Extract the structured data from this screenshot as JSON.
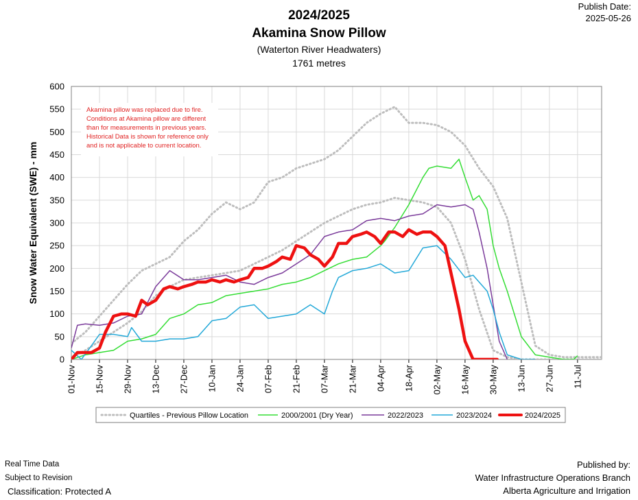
{
  "header": {
    "title": "2024/2025",
    "station": "Akamina Snow Pillow",
    "location": "(Waterton River Headwaters)",
    "elevation": "1761 metres",
    "publish_label": "Publish Date:",
    "publish_date": "2025-05-26"
  },
  "footer": {
    "left_line1": "Real Time Data",
    "left_line2": "Subject to Revision",
    "classification": "Classification: Protected A",
    "right_line1": "Published by:",
    "right_line2": "Water Infrastructure Operations Branch",
    "right_line3": "Alberta Agriculture and Irrigation"
  },
  "chart_data": {
    "type": "line",
    "ylabel": "Snow Water Equivalent (SWE)  -  mm",
    "ylim": [
      0,
      600
    ],
    "yticks": [
      0,
      50,
      100,
      150,
      200,
      250,
      300,
      350,
      400,
      450,
      500,
      550,
      600
    ],
    "xlim_days": [
      0,
      264
    ],
    "xticks": [
      "01-Nov",
      "15-Nov",
      "29-Nov",
      "13-Dec",
      "27-Dec",
      "10-Jan",
      "24-Jan",
      "07-Feb",
      "21-Feb",
      "07-Mar",
      "21-Mar",
      "04-Apr",
      "18-Apr",
      "02-May",
      "16-May",
      "30-May",
      "13-Jun",
      "27-Jun",
      "11-Jul"
    ],
    "grid": true,
    "legend_position": "bottom",
    "annotation": [
      "Akamina pillow was replaced due to fire.",
      "Conditions at Akamina pillow are different",
      "than for measurements in previous years.",
      "Historical Data is shown for reference only",
      "and is not applicable to current location."
    ],
    "series": [
      {
        "name": "Quartiles - Previous Pillow Location",
        "color": "#bdbdbd",
        "style": "dotted",
        "x": [
          0,
          7,
          14,
          21,
          28,
          35,
          42,
          49,
          56,
          63,
          70,
          77,
          84,
          91,
          98,
          105,
          112,
          119,
          126,
          133,
          140,
          147,
          154,
          161,
          168,
          175,
          182,
          189,
          196,
          203,
          210,
          217,
          224,
          231,
          238,
          245,
          252,
          259,
          264
        ],
        "y": [
          35,
          60,
          95,
          130,
          165,
          195,
          210,
          225,
          260,
          285,
          320,
          345,
          330,
          345,
          390,
          400,
          420,
          430,
          440,
          460,
          490,
          520,
          540,
          555,
          520,
          520,
          515,
          500,
          470,
          420,
          380,
          310,
          170,
          30,
          10,
          5,
          5,
          5,
          5
        ]
      },
      {
        "name": "",
        "color": "#bdbdbd",
        "style": "dotted",
        "x": [
          0,
          7,
          14,
          21,
          28,
          35,
          42,
          49,
          56,
          63,
          70,
          77,
          84,
          91,
          98,
          105,
          112,
          119,
          126,
          133,
          140,
          147,
          154,
          161,
          168,
          175,
          182,
          189,
          196,
          203,
          210,
          217,
          224,
          231,
          238,
          245,
          252,
          259,
          264
        ],
        "y": [
          5,
          20,
          40,
          60,
          80,
          105,
          140,
          160,
          175,
          180,
          185,
          190,
          195,
          210,
          225,
          240,
          260,
          280,
          300,
          315,
          330,
          340,
          345,
          355,
          350,
          345,
          335,
          300,
          220,
          110,
          20,
          5,
          0,
          0,
          0,
          0,
          0,
          0,
          0
        ]
      },
      {
        "name": "2000/2001  (Dry Year)",
        "color": "#33dd33",
        "style": "solid",
        "x": [
          0,
          7,
          14,
          21,
          28,
          35,
          42,
          49,
          56,
          63,
          70,
          77,
          84,
          91,
          98,
          105,
          112,
          119,
          126,
          133,
          140,
          147,
          154,
          156,
          161,
          168,
          175,
          178,
          182,
          189,
          193,
          196,
          200,
          203,
          207,
          210,
          213,
          217,
          224,
          231,
          238,
          245,
          250,
          252
        ],
        "y": [
          0,
          10,
          15,
          20,
          40,
          45,
          55,
          90,
          100,
          120,
          125,
          140,
          145,
          150,
          155,
          165,
          170,
          180,
          195,
          210,
          220,
          225,
          250,
          260,
          290,
          340,
          400,
          420,
          425,
          420,
          440,
          400,
          350,
          360,
          330,
          250,
          200,
          150,
          50,
          10,
          5,
          0,
          0,
          8
        ]
      },
      {
        "name": "2022/2023",
        "color": "#7a3a9a",
        "style": "solid",
        "x": [
          0,
          3,
          7,
          14,
          21,
          28,
          35,
          42,
          49,
          56,
          63,
          70,
          77,
          84,
          91,
          98,
          105,
          112,
          119,
          126,
          133,
          140,
          147,
          154,
          161,
          168,
          175,
          182,
          189,
          196,
          200,
          203,
          207,
          210,
          213,
          217
        ],
        "y": [
          25,
          75,
          78,
          75,
          80,
          95,
          100,
          160,
          195,
          175,
          175,
          180,
          185,
          170,
          165,
          180,
          190,
          210,
          230,
          270,
          280,
          285,
          305,
          310,
          305,
          315,
          320,
          340,
          335,
          340,
          330,
          280,
          200,
          120,
          40,
          0
        ]
      },
      {
        "name": "2023/2024",
        "color": "#22a8d8",
        "style": "solid",
        "x": [
          0,
          5,
          10,
          14,
          21,
          28,
          30,
          35,
          42,
          49,
          56,
          63,
          70,
          77,
          84,
          91,
          98,
          105,
          112,
          119,
          126,
          130,
          133,
          140,
          147,
          154,
          161,
          168,
          175,
          182,
          189,
          196,
          200,
          203,
          207,
          210,
          213,
          217,
          224,
          231
        ],
        "y": [
          20,
          0,
          30,
          55,
          55,
          50,
          70,
          40,
          40,
          45,
          45,
          50,
          85,
          90,
          115,
          120,
          90,
          95,
          100,
          120,
          100,
          150,
          180,
          195,
          200,
          210,
          190,
          195,
          245,
          250,
          220,
          180,
          185,
          170,
          150,
          110,
          60,
          10,
          0,
          0
        ]
      },
      {
        "name": "2024/2025",
        "color": "#ee1111",
        "style": "solid-bold",
        "x": [
          0,
          3,
          7,
          10,
          14,
          17,
          21,
          25,
          28,
          32,
          35,
          38,
          42,
          46,
          49,
          53,
          56,
          60,
          63,
          67,
          70,
          74,
          77,
          81,
          84,
          88,
          91,
          95,
          98,
          102,
          105,
          109,
          112,
          116,
          119,
          123,
          126,
          130,
          133,
          137,
          140,
          144,
          147,
          151,
          154,
          158,
          161,
          165,
          168,
          172,
          175,
          179,
          182,
          186,
          189,
          193,
          196,
          200,
          203,
          207,
          210,
          212
        ],
        "y": [
          0,
          15,
          15,
          15,
          25,
          60,
          95,
          100,
          100,
          95,
          130,
          120,
          130,
          155,
          160,
          155,
          160,
          165,
          170,
          170,
          175,
          170,
          175,
          170,
          175,
          180,
          200,
          200,
          205,
          215,
          225,
          220,
          250,
          245,
          230,
          220,
          205,
          225,
          255,
          255,
          270,
          275,
          280,
          270,
          255,
          280,
          280,
          270,
          285,
          275,
          280,
          280,
          270,
          250,
          190,
          110,
          40,
          0,
          0,
          0,
          0,
          0
        ]
      }
    ]
  }
}
